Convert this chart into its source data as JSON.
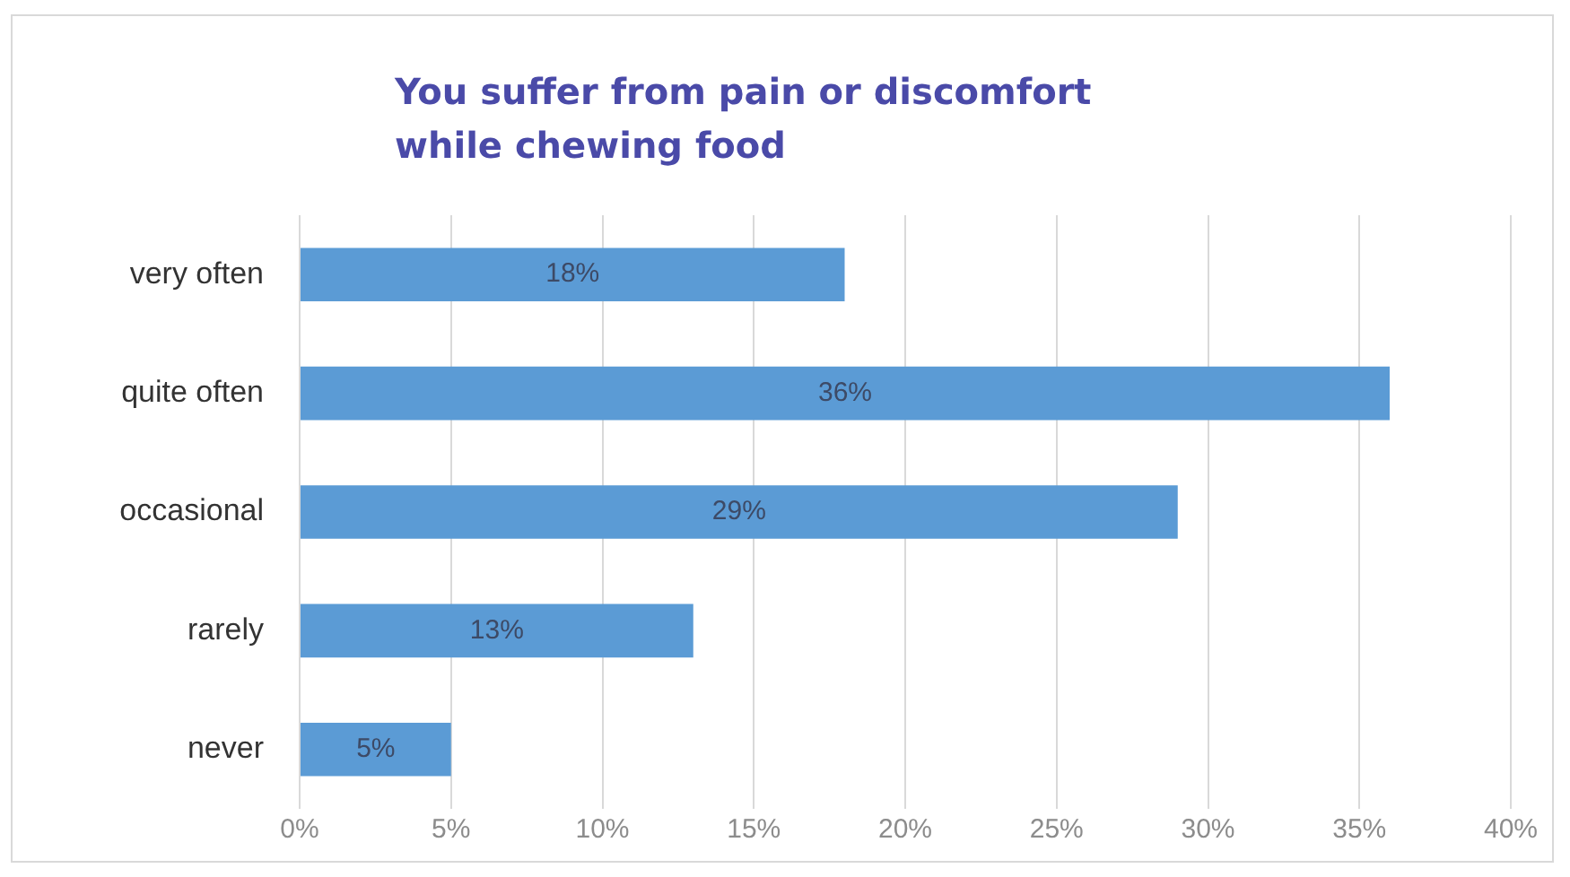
{
  "chart_data": {
    "type": "bar",
    "orientation": "horizontal",
    "title": "You suffer from pain or discomfort while chewing food",
    "categories": [
      "very often",
      "quite often",
      "occasional",
      "rarely",
      "never"
    ],
    "values": [
      18,
      36,
      29,
      13,
      5
    ],
    "value_labels": [
      "18%",
      "36%",
      "29%",
      "13%",
      "5%"
    ],
    "color": "#5b9bd5",
    "xlim": [
      0,
      40
    ],
    "xticks": [
      {
        "value": 0,
        "label": "0%"
      },
      {
        "value": 5,
        "label": "5%"
      },
      {
        "value": 10,
        "label": "10%"
      },
      {
        "value": 15,
        "label": "15%"
      },
      {
        "value": 20,
        "label": "20%"
      },
      {
        "value": 25,
        "label": "25%"
      },
      {
        "value": 30,
        "label": "30%"
      },
      {
        "value": 35,
        "label": "35%"
      },
      {
        "value": 40,
        "label": "40%"
      }
    ],
    "grid": "x",
    "legend": false
  }
}
